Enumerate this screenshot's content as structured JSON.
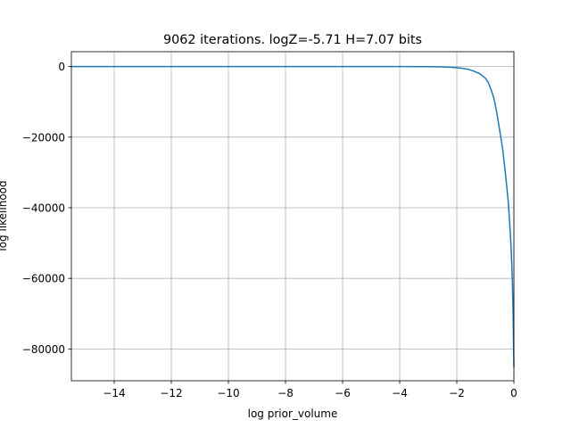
{
  "chart_data": {
    "type": "line",
    "title": "9062 iterations. logZ=-5.71 H=7.07 bits",
    "xlabel": "log prior_volume",
    "ylabel": "log likelihood",
    "xlim": [
      -15.5,
      0.0
    ],
    "ylim": [
      -89000,
      4200
    ],
    "grid": true,
    "x_ticks": [
      -14,
      -12,
      -10,
      -8,
      -6,
      -4,
      -2,
      0
    ],
    "x_tick_labels": [
      "−14",
      "−12",
      "−10",
      "−8",
      "−6",
      "−4",
      "−2",
      "0"
    ],
    "y_ticks": [
      0,
      -20000,
      -40000,
      -60000,
      -80000
    ],
    "y_tick_labels": [
      "0",
      "−20000",
      "−40000",
      "−60000",
      "−80000"
    ],
    "series": [
      {
        "color": "#1f77b4",
        "x": [
          -15.5,
          -10,
          -6,
          -4,
          -3,
          -2.5,
          -2.0,
          -1.8,
          -1.6,
          -1.4,
          -1.2,
          -1.0,
          -0.9,
          -0.8,
          -0.7,
          -0.6,
          -0.5,
          -0.4,
          -0.3,
          -0.2,
          -0.15,
          -0.1,
          -0.07,
          -0.05,
          -0.03,
          -0.02,
          -0.01,
          0.0
        ],
        "y": [
          0,
          0,
          0,
          0,
          -30,
          -100,
          -300,
          -500,
          -800,
          -1300,
          -2000,
          -3300,
          -4500,
          -6500,
          -9000,
          -13000,
          -18000,
          -23000,
          -30000,
          -38000,
          -44000,
          -51000,
          -57000,
          -62000,
          -69000,
          -74000,
          -80000,
          -85000
        ]
      }
    ]
  }
}
